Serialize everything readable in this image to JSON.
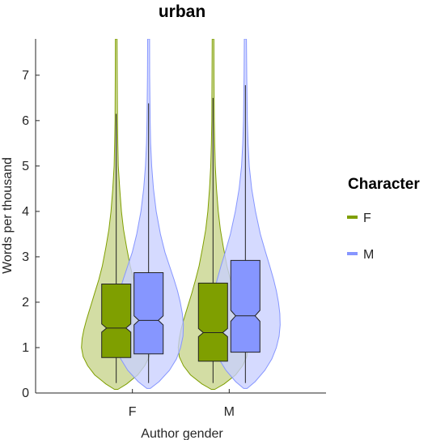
{
  "chart_data": {
    "type": "violin-box",
    "title": "urban",
    "xlabel": "Author gender",
    "ylabel": "Words per thousand",
    "ylim": [
      0,
      7.8
    ],
    "yticks": [
      0,
      1,
      2,
      3,
      4,
      5,
      6,
      7
    ],
    "categories": [
      "F",
      "M"
    ],
    "legend": {
      "title": "Character",
      "position": "right",
      "entries": [
        {
          "label": "F",
          "color": "#7f9f00"
        },
        {
          "label": "M",
          "color": "#8696ff"
        }
      ]
    },
    "series": [
      {
        "name": "F",
        "color": "#7f9f00",
        "fill": "#c6d48a",
        "groups": [
          {
            "category": "F",
            "q1": 0.78,
            "median": 1.43,
            "q3": 2.4,
            "notch_low": 1.34,
            "notch_high": 1.52,
            "whisker_low": 0.22,
            "whisker_high": 6.15,
            "violin_top": 7.8,
            "violin_bottom": 0.08,
            "density": [
              [
                0.08,
                0.05
              ],
              [
                0.2,
                0.3
              ],
              [
                0.4,
                0.62
              ],
              [
                0.6,
                0.82
              ],
              [
                0.8,
                0.95
              ],
              [
                1.0,
                1.0
              ],
              [
                1.2,
                0.98
              ],
              [
                1.4,
                0.93
              ],
              [
                1.6,
                0.86
              ],
              [
                1.8,
                0.78
              ],
              [
                2.0,
                0.7
              ],
              [
                2.2,
                0.62
              ],
              [
                2.5,
                0.5
              ],
              [
                2.8,
                0.4
              ],
              [
                3.2,
                0.3
              ],
              [
                3.6,
                0.21
              ],
              [
                4.0,
                0.15
              ],
              [
                4.5,
                0.1
              ],
              [
                5.0,
                0.06
              ],
              [
                5.5,
                0.045
              ],
              [
                6.0,
                0.035
              ],
              [
                7.0,
                0.028
              ],
              [
                7.8,
                0.025
              ]
            ]
          },
          {
            "category": "M",
            "q1": 0.7,
            "median": 1.33,
            "q3": 2.42,
            "notch_low": 1.24,
            "notch_high": 1.42,
            "whisker_low": 0.22,
            "whisker_high": 6.5,
            "violin_top": 7.8,
            "violin_bottom": 0.08,
            "density": [
              [
                0.08,
                0.05
              ],
              [
                0.2,
                0.32
              ],
              [
                0.4,
                0.65
              ],
              [
                0.6,
                0.85
              ],
              [
                0.8,
                0.97
              ],
              [
                1.0,
                1.0
              ],
              [
                1.2,
                0.97
              ],
              [
                1.4,
                0.92
              ],
              [
                1.6,
                0.85
              ],
              [
                1.8,
                0.77
              ],
              [
                2.0,
                0.69
              ],
              [
                2.2,
                0.61
              ],
              [
                2.5,
                0.5
              ],
              [
                2.8,
                0.4
              ],
              [
                3.2,
                0.3
              ],
              [
                3.6,
                0.21
              ],
              [
                4.0,
                0.15
              ],
              [
                4.5,
                0.1
              ],
              [
                5.0,
                0.065
              ],
              [
                5.5,
                0.048
              ],
              [
                6.0,
                0.036
              ],
              [
                7.0,
                0.028
              ],
              [
                7.8,
                0.025
              ]
            ]
          }
        ]
      },
      {
        "name": "M",
        "color": "#8696ff",
        "fill": "#c9d0ff",
        "groups": [
          {
            "category": "F",
            "q1": 0.86,
            "median": 1.6,
            "q3": 2.65,
            "notch_low": 1.5,
            "notch_high": 1.7,
            "whisker_low": 0.22,
            "whisker_high": 6.38,
            "violin_top": 7.8,
            "violin_bottom": 0.1,
            "density": [
              [
                0.1,
                0.05
              ],
              [
                0.25,
                0.3
              ],
              [
                0.5,
                0.6
              ],
              [
                0.75,
                0.8
              ],
              [
                1.0,
                0.92
              ],
              [
                1.25,
                0.99
              ],
              [
                1.5,
                1.0
              ],
              [
                1.75,
                0.97
              ],
              [
                2.0,
                0.91
              ],
              [
                2.25,
                0.83
              ],
              [
                2.5,
                0.73
              ],
              [
                2.8,
                0.6
              ],
              [
                3.1,
                0.47
              ],
              [
                3.5,
                0.34
              ],
              [
                4.0,
                0.22
              ],
              [
                4.5,
                0.14
              ],
              [
                5.0,
                0.09
              ],
              [
                5.5,
                0.06
              ],
              [
                6.0,
                0.045
              ],
              [
                7.0,
                0.032
              ],
              [
                7.8,
                0.028
              ]
            ]
          },
          {
            "category": "M",
            "q1": 0.9,
            "median": 1.7,
            "q3": 2.92,
            "notch_low": 1.58,
            "notch_high": 1.82,
            "whisker_low": 0.22,
            "whisker_high": 6.78,
            "violin_top": 7.8,
            "violin_bottom": 0.1,
            "density": [
              [
                0.1,
                0.05
              ],
              [
                0.25,
                0.28
              ],
              [
                0.5,
                0.56
              ],
              [
                0.75,
                0.76
              ],
              [
                1.0,
                0.89
              ],
              [
                1.25,
                0.97
              ],
              [
                1.5,
                1.0
              ],
              [
                1.75,
                0.99
              ],
              [
                2.0,
                0.95
              ],
              [
                2.25,
                0.89
              ],
              [
                2.5,
                0.81
              ],
              [
                2.8,
                0.7
              ],
              [
                3.1,
                0.58
              ],
              [
                3.5,
                0.43
              ],
              [
                4.0,
                0.29
              ],
              [
                4.5,
                0.18
              ],
              [
                5.0,
                0.11
              ],
              [
                5.5,
                0.075
              ],
              [
                6.0,
                0.055
              ],
              [
                7.0,
                0.038
              ],
              [
                7.8,
                0.03
              ]
            ]
          }
        ]
      }
    ]
  }
}
